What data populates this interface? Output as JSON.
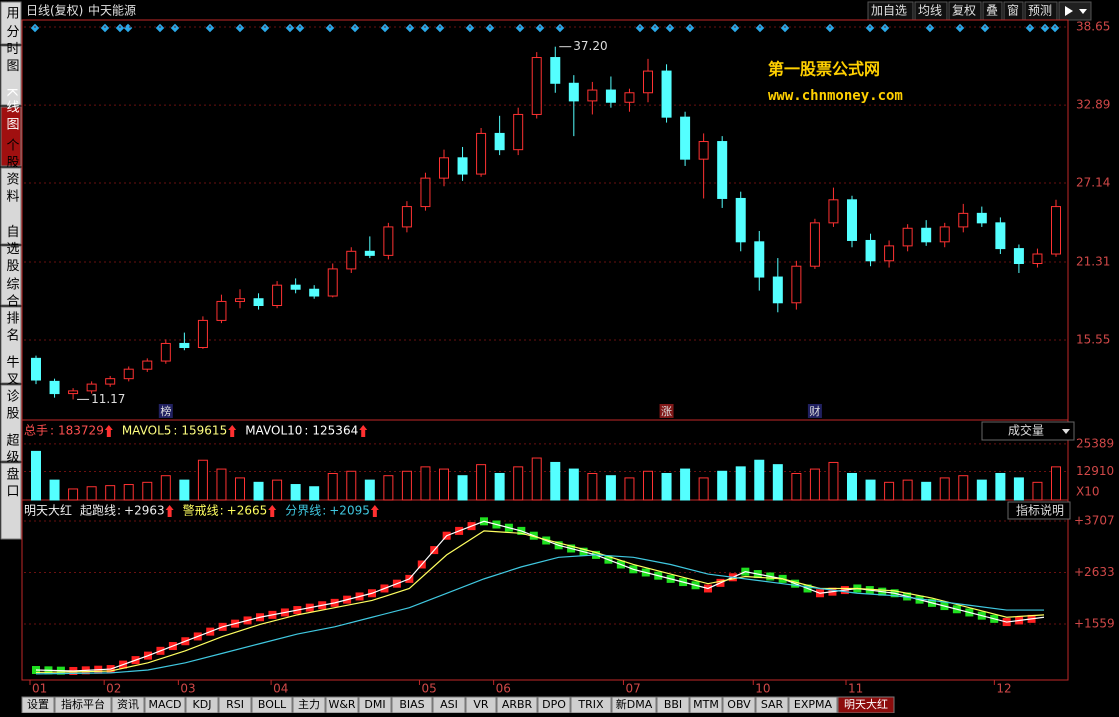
{
  "header": {
    "title": "日线(复权)",
    "stock": "中天能源",
    "buttons": [
      "加自选",
      "均线",
      "复权",
      "叠",
      "窗",
      "预测"
    ]
  },
  "sidebar": [
    "应用",
    "分时图",
    "K线图",
    "个股资料",
    "自选股",
    "综合排名",
    "牛叉诊股",
    "超级盘口"
  ],
  "watermark": {
    "name": "第一股票公式网",
    "url": "www.chnmoney.com"
  },
  "months": [
    "01",
    "02",
    "03",
    "04",
    "05",
    "06",
    "07",
    "10",
    "11",
    "12"
  ],
  "tabs": [
    "设置",
    "指标平台",
    "资讯",
    "MACD",
    "KDJ",
    "RSI",
    "BOLL",
    "主力",
    "W&R",
    "DMI",
    "BIAS",
    "ASI",
    "VR",
    "ARBR",
    "DPO",
    "TRIX",
    "新DMA",
    "BBI",
    "MTM",
    "OBV",
    "SAR",
    "EXPMA",
    "明天大红"
  ],
  "chart_data": [
    {
      "type": "candlestick",
      "ylim": [
        9.65,
        39.17
      ],
      "yticks": [
        15.55,
        21.31,
        27.14,
        32.89,
        38.65
      ],
      "up_color": "#ff3232",
      "down_color": "#54ffff",
      "annotations": [
        {
          "label": "37.20",
          "value": 37.2,
          "index": 28
        },
        {
          "label": "11.17",
          "value": 11.17,
          "index": 2
        }
      ],
      "markers": [
        {
          "label": "榜",
          "index": 7
        },
        {
          "label": "涨",
          "index": 34
        },
        {
          "label": "财",
          "index": 42
        }
      ],
      "values": [
        [
          14.2,
          14.4,
          12.3,
          12.6
        ],
        [
          12.5,
          12.7,
          11.3,
          11.6
        ],
        [
          11.6,
          12.0,
          11.17,
          11.8
        ],
        [
          11.8,
          12.5,
          11.6,
          12.3
        ],
        [
          12.3,
          12.9,
          12.1,
          12.7
        ],
        [
          12.7,
          13.6,
          12.5,
          13.4
        ],
        [
          13.4,
          14.2,
          13.2,
          14.0
        ],
        [
          14.0,
          15.6,
          13.8,
          15.3
        ],
        [
          15.3,
          16.1,
          14.8,
          15.0
        ],
        [
          15.0,
          17.3,
          14.9,
          17.0
        ],
        [
          17.0,
          18.9,
          16.8,
          18.4
        ],
        [
          18.4,
          19.3,
          17.9,
          18.6
        ],
        [
          18.6,
          19.0,
          17.8,
          18.1
        ],
        [
          18.1,
          19.9,
          17.9,
          19.6
        ],
        [
          19.6,
          20.1,
          19.0,
          19.3
        ],
        [
          19.3,
          19.6,
          18.6,
          18.8
        ],
        [
          18.8,
          21.2,
          18.7,
          20.8
        ],
        [
          20.8,
          22.4,
          20.5,
          22.1
        ],
        [
          22.1,
          23.2,
          21.6,
          21.8
        ],
        [
          21.8,
          24.2,
          21.5,
          23.9
        ],
        [
          23.9,
          25.8,
          23.5,
          25.4
        ],
        [
          25.4,
          27.9,
          25.1,
          27.5
        ],
        [
          27.5,
          29.6,
          26.9,
          29.0
        ],
        [
          29.0,
          29.8,
          27.3,
          27.8
        ],
        [
          27.8,
          31.2,
          27.6,
          30.8
        ],
        [
          30.8,
          32.1,
          29.2,
          29.6
        ],
        [
          29.6,
          32.7,
          29.2,
          32.2
        ],
        [
          32.2,
          36.8,
          31.9,
          36.4
        ],
        [
          36.4,
          37.2,
          33.8,
          34.5
        ],
        [
          34.5,
          35.1,
          30.6,
          33.2
        ],
        [
          33.2,
          34.6,
          32.2,
          34.0
        ],
        [
          34.0,
          35.0,
          32.7,
          33.1
        ],
        [
          33.1,
          34.1,
          32.4,
          33.8
        ],
        [
          33.8,
          36.3,
          33.1,
          35.4
        ],
        [
          35.4,
          35.9,
          31.6,
          32.0
        ],
        [
          32.0,
          32.4,
          28.4,
          28.9
        ],
        [
          28.9,
          30.8,
          26.0,
          30.2
        ],
        [
          30.2,
          30.6,
          25.3,
          26.0
        ],
        [
          26.0,
          26.5,
          22.1,
          22.8
        ],
        [
          22.8,
          23.6,
          19.2,
          20.2
        ],
        [
          20.2,
          21.6,
          17.6,
          18.3
        ],
        [
          18.3,
          21.4,
          17.8,
          21.0
        ],
        [
          21.0,
          24.5,
          20.8,
          24.2
        ],
        [
          24.2,
          26.8,
          23.9,
          25.9
        ],
        [
          25.9,
          26.2,
          22.4,
          22.9
        ],
        [
          22.9,
          23.4,
          21.0,
          21.4
        ],
        [
          21.4,
          22.9,
          20.9,
          22.5
        ],
        [
          22.5,
          24.1,
          22.1,
          23.8
        ],
        [
          23.8,
          24.4,
          22.5,
          22.8
        ],
        [
          22.8,
          24.2,
          22.4,
          23.9
        ],
        [
          23.9,
          25.6,
          23.5,
          24.9
        ],
        [
          24.9,
          25.4,
          23.9,
          24.2
        ],
        [
          24.2,
          24.6,
          21.9,
          22.3
        ],
        [
          22.3,
          22.6,
          20.5,
          21.2
        ],
        [
          21.2,
          22.3,
          20.9,
          21.9
        ],
        [
          21.9,
          25.9,
          21.7,
          25.4
        ]
      ]
    },
    {
      "type": "bar",
      "ylim": [
        0,
        34400
      ],
      "yticks": [
        12910,
        25389
      ],
      "unit": "X10",
      "selector": "成交量",
      "legend": [
        {
          "name": "总手",
          "value": 183729,
          "color": "#ff5050"
        },
        {
          "name": "MAVOL5",
          "value": 159615,
          "color": "#ffff80"
        },
        {
          "name": "MAVOL10",
          "value": 125364,
          "color": "#ffffff"
        }
      ],
      "values": [
        22000,
        9000,
        5000,
        6000,
        6500,
        7000,
        8000,
        11000,
        9000,
        18000,
        14000,
        10000,
        8000,
        9000,
        7000,
        6000,
        12000,
        13000,
        9000,
        11000,
        13000,
        15000,
        14000,
        11000,
        16000,
        12000,
        15000,
        19000,
        17000,
        14000,
        12000,
        11000,
        10000,
        13000,
        12000,
        14000,
        10000,
        13000,
        15000,
        18000,
        16000,
        12000,
        14000,
        17000,
        12000,
        9000,
        8000,
        9000,
        8000,
        10000,
        11000,
        9000,
        12000,
        10000,
        8000,
        15000
      ]
    },
    {
      "type": "line",
      "title": "明天大红",
      "help": "指标说明",
      "ylim": [
        392,
        4040
      ],
      "yticks": [
        {
          "value": 1559,
          "label": "+1559"
        },
        {
          "value": 2633,
          "label": "+2633"
        },
        {
          "value": 3707,
          "label": "+3707"
        }
      ],
      "series": [
        {
          "name": "起跑线",
          "label": "+2963",
          "color": "#ffffff",
          "values": [
            600,
            580,
            620,
            900,
            1200,
            1500,
            1700,
            1850,
            2000,
            2200,
            2500,
            3400,
            3700,
            3500,
            3200,
            3000,
            2700,
            2500,
            2300,
            2650,
            2500,
            2200,
            2300,
            2200,
            2000,
            1800,
            1600,
            1700
          ]
        },
        {
          "name": "警戒线",
          "label": "+2665",
          "color": "#ffff60",
          "values": [
            550,
            560,
            580,
            750,
            1000,
            1300,
            1550,
            1750,
            1900,
            2050,
            2300,
            3000,
            3500,
            3450,
            3250,
            3050,
            2800,
            2600,
            2400,
            2550,
            2500,
            2300,
            2300,
            2250,
            2100,
            1900,
            1700,
            1750
          ]
        },
        {
          "name": "分界线",
          "label": "+2095",
          "color": "#40c8e0",
          "values": [
            520,
            530,
            540,
            600,
            750,
            950,
            1150,
            1350,
            1500,
            1700,
            1900,
            2200,
            2500,
            2750,
            2950,
            3000,
            2950,
            2800,
            2600,
            2500,
            2400,
            2300,
            2200,
            2150,
            2050,
            1950,
            1850,
            1850
          ]
        }
      ]
    }
  ]
}
